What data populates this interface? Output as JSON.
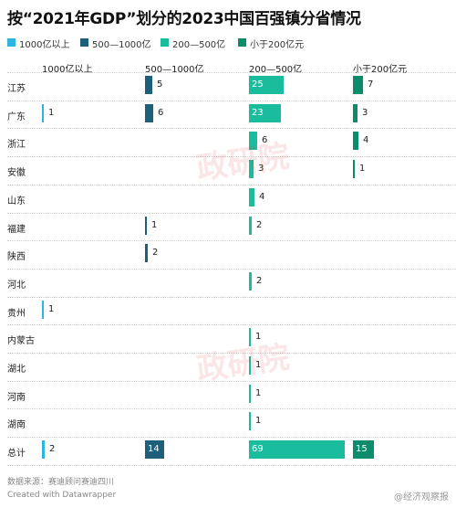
{
  "title": "按“2021年GDP”划分的2023中国百强镇分省情况",
  "colors": [
    "#2bb5e0",
    "#1e5f7b",
    "#19bc9c",
    "#0b8c6a"
  ],
  "chart_data": {
    "type": "bar",
    "series": [
      {
        "name": "1000亿以上",
        "header": "1000亿以上",
        "values": [
          null,
          1,
          null,
          null,
          null,
          null,
          null,
          null,
          1,
          null,
          null,
          null,
          null,
          2
        ]
      },
      {
        "name": "500—1000亿",
        "header": "500—1000亿",
        "values": [
          5,
          6,
          null,
          null,
          null,
          1,
          2,
          null,
          null,
          null,
          null,
          null,
          null,
          14
        ]
      },
      {
        "name": "200—500亿",
        "header": "200—500亿",
        "values": [
          25,
          23,
          6,
          3,
          4,
          2,
          null,
          2,
          null,
          1,
          1,
          1,
          1,
          69
        ]
      },
      {
        "name": "小于200亿元",
        "header": "小于200亿元",
        "values": [
          7,
          3,
          4,
          1,
          null,
          null,
          null,
          null,
          null,
          null,
          null,
          null,
          null,
          15
        ]
      }
    ],
    "categories": [
      "江苏",
      "广东",
      "浙江",
      "安徽",
      "山东",
      "福建",
      "陕西",
      "河北",
      "贵州",
      "内蒙古",
      "湖北",
      "河南",
      "湖南",
      "总计"
    ]
  },
  "footer": {
    "source": "数据来源：赛迪顾问赛迪四川",
    "credit": "Created with Datawrapper"
  },
  "watermark": {
    "mark": "政研院",
    "badge": "@经济观察报"
  }
}
